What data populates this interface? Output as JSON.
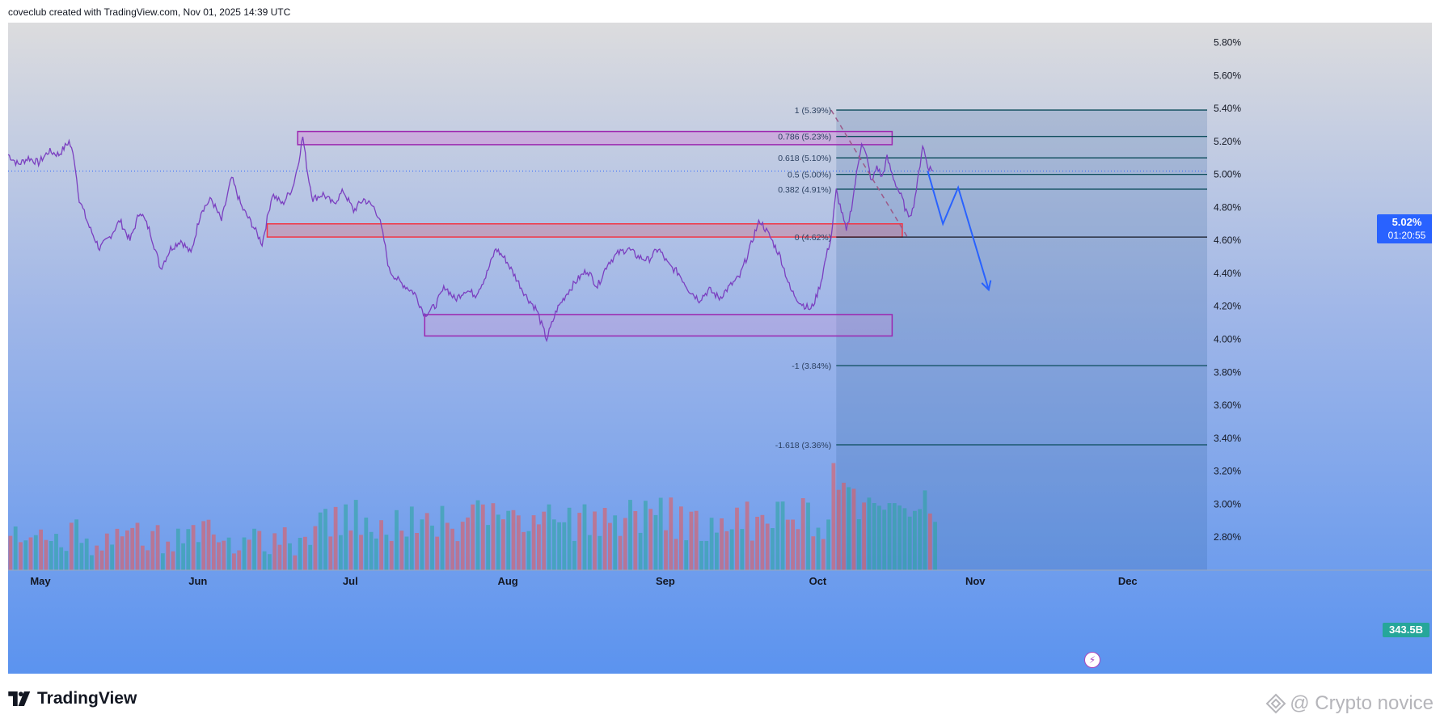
{
  "attribution": "coveclub created with TradingView.com, Nov 01, 2025 14:39 UTC",
  "brand": {
    "name": "TradingView",
    "logo_icon": "tradingview-logo-icon"
  },
  "watermark": {
    "text": "@ Crypto novice",
    "icon": "binance-square-icon"
  },
  "last_price": {
    "value": "5.02%",
    "countdown": "01:20:55",
    "color": "#2962ff"
  },
  "volume_badge": {
    "value": "343.5B",
    "color": "#26a69a"
  },
  "chart_data": {
    "type": "candlestick",
    "y_axis": {
      "unit": "%",
      "ylim": [
        2.6,
        5.92
      ],
      "ticks": [
        "5.80%",
        "5.60%",
        "5.40%",
        "5.20%",
        "5.00%",
        "4.80%",
        "4.60%",
        "4.40%",
        "4.20%",
        "4.00%",
        "3.80%",
        "3.60%",
        "3.40%",
        "3.20%",
        "3.00%",
        "2.80%"
      ],
      "tick_values": [
        5.8,
        5.6,
        5.4,
        5.2,
        5.0,
        4.8,
        4.6,
        4.4,
        4.2,
        4.0,
        3.8,
        3.6,
        3.4,
        3.2,
        3.0,
        2.8
      ]
    },
    "x_axis": {
      "labels": [
        "May",
        "Jun",
        "Jul",
        "Aug",
        "Sep",
        "Oct",
        "Nov",
        "Dec"
      ],
      "label_days": [
        0,
        31,
        61,
        92,
        123,
        153,
        184,
        214
      ],
      "xlim_days": [
        0,
        236
      ],
      "last_bar_day": 182
    },
    "price_series": [
      [
        0,
        5.12
      ],
      [
        2,
        5.06
      ],
      [
        4,
        5.1
      ],
      [
        6,
        5.07
      ],
      [
        8,
        5.14
      ],
      [
        10,
        5.12
      ],
      [
        12,
        5.2
      ],
      [
        13,
        5.1
      ],
      [
        14,
        4.85
      ],
      [
        16,
        4.68
      ],
      [
        18,
        4.55
      ],
      [
        20,
        4.62
      ],
      [
        22,
        4.72
      ],
      [
        24,
        4.6
      ],
      [
        26,
        4.78
      ],
      [
        28,
        4.65
      ],
      [
        30,
        4.43
      ],
      [
        32,
        4.55
      ],
      [
        34,
        4.6
      ],
      [
        36,
        4.52
      ],
      [
        38,
        4.78
      ],
      [
        40,
        4.85
      ],
      [
        42,
        4.72
      ],
      [
        44,
        4.98
      ],
      [
        46,
        4.8
      ],
      [
        48,
        4.7
      ],
      [
        50,
        4.58
      ],
      [
        52,
        4.88
      ],
      [
        54,
        4.82
      ],
      [
        56,
        4.92
      ],
      [
        57,
        5.05
      ],
      [
        58,
        5.23
      ],
      [
        59,
        5.0
      ],
      [
        60,
        4.85
      ],
      [
        62,
        4.88
      ],
      [
        64,
        4.82
      ],
      [
        66,
        4.9
      ],
      [
        68,
        4.78
      ],
      [
        70,
        4.85
      ],
      [
        72,
        4.8
      ],
      [
        73,
        4.74
      ],
      [
        74,
        4.6
      ],
      [
        75,
        4.42
      ],
      [
        77,
        4.35
      ],
      [
        80,
        4.28
      ],
      [
        82,
        4.15
      ],
      [
        84,
        4.2
      ],
      [
        86,
        4.32
      ],
      [
        88,
        4.24
      ],
      [
        90,
        4.3
      ],
      [
        92,
        4.27
      ],
      [
        94,
        4.38
      ],
      [
        96,
        4.55
      ],
      [
        98,
        4.48
      ],
      [
        100,
        4.37
      ],
      [
        102,
        4.26
      ],
      [
        104,
        4.18
      ],
      [
        106,
        4.0
      ],
      [
        108,
        4.18
      ],
      [
        110,
        4.28
      ],
      [
        112,
        4.36
      ],
      [
        114,
        4.42
      ],
      [
        116,
        4.32
      ],
      [
        118,
        4.46
      ],
      [
        120,
        4.52
      ],
      [
        122,
        4.55
      ],
      [
        124,
        4.5
      ],
      [
        126,
        4.48
      ],
      [
        128,
        4.55
      ],
      [
        130,
        4.45
      ],
      [
        132,
        4.4
      ],
      [
        134,
        4.3
      ],
      [
        136,
        4.24
      ],
      [
        138,
        4.3
      ],
      [
        140,
        4.25
      ],
      [
        142,
        4.32
      ],
      [
        144,
        4.38
      ],
      [
        146,
        4.55
      ],
      [
        147,
        4.65
      ],
      [
        148,
        4.72
      ],
      [
        150,
        4.62
      ],
      [
        152,
        4.5
      ],
      [
        154,
        4.3
      ],
      [
        156,
        4.22
      ],
      [
        158,
        4.18
      ],
      [
        159,
        4.25
      ],
      [
        160,
        4.35
      ],
      [
        161,
        4.5
      ],
      [
        162,
        4.62
      ],
      [
        163,
        4.9
      ],
      [
        164,
        4.78
      ],
      [
        165,
        4.65
      ],
      [
        166,
        4.8
      ],
      [
        167,
        5.0
      ],
      [
        168,
        5.2
      ],
      [
        169,
        5.1
      ],
      [
        170,
        4.95
      ],
      [
        171,
        5.05
      ],
      [
        172,
        4.98
      ],
      [
        173,
        5.1
      ],
      [
        174,
        5.0
      ],
      [
        175,
        4.92
      ],
      [
        176,
        4.85
      ],
      [
        177,
        4.75
      ],
      [
        178,
        4.78
      ],
      [
        179,
        4.95
      ],
      [
        180,
        5.18
      ],
      [
        181,
        5.05
      ],
      [
        182,
        5.02
      ]
    ],
    "volume_color_up": "#26a69a",
    "volume_color_down": "#ef5350",
    "fibonacci": {
      "color": "#0b4b5a",
      "levels": [
        {
          "label": "1 (5.39%)",
          "price": 5.39
        },
        {
          "label": "0.786 (5.23%)",
          "price": 5.23
        },
        {
          "label": "0.618 (5.10%)",
          "price": 5.1
        },
        {
          "label": "0.5 (5.00%)",
          "price": 5.0
        },
        {
          "label": "0.382 (4.91%)",
          "price": 4.91
        },
        {
          "label": "0 (4.62%)",
          "price": 4.62
        },
        {
          "label": "-1 (3.84%)",
          "price": 3.84
        },
        {
          "label": "-1.618 (3.36%)",
          "price": 3.36
        }
      ]
    },
    "zones": [
      {
        "name": "upper-resistance-zone",
        "from_day": 57,
        "to_day": 174,
        "top": 5.26,
        "bottom": 5.18,
        "border": "#9c27b0",
        "fill": "rgba(206,147,216,0.55)"
      },
      {
        "name": "middle-support-zone",
        "from_day": 51,
        "to_day": 176,
        "top": 4.7,
        "bottom": 4.62,
        "border": "#f23645",
        "fill": "rgba(242,54,69,0.22)"
      },
      {
        "name": "lower-support-zone",
        "from_day": 82,
        "to_day": 174,
        "top": 4.15,
        "bottom": 4.02,
        "border": "#9c27b0",
        "fill": "rgba(206,147,216,0.28)"
      }
    ],
    "projection_arrow": {
      "color": "#2962ff",
      "points": [
        [
          181,
          5.02
        ],
        [
          184,
          4.7
        ],
        [
          187,
          4.92
        ],
        [
          193,
          4.3
        ]
      ]
    },
    "fib_anchor_line": {
      "color": "#9c5a8a",
      "from": [
        162,
        5.39
      ],
      "to": [
        177,
        4.62
      ]
    }
  }
}
